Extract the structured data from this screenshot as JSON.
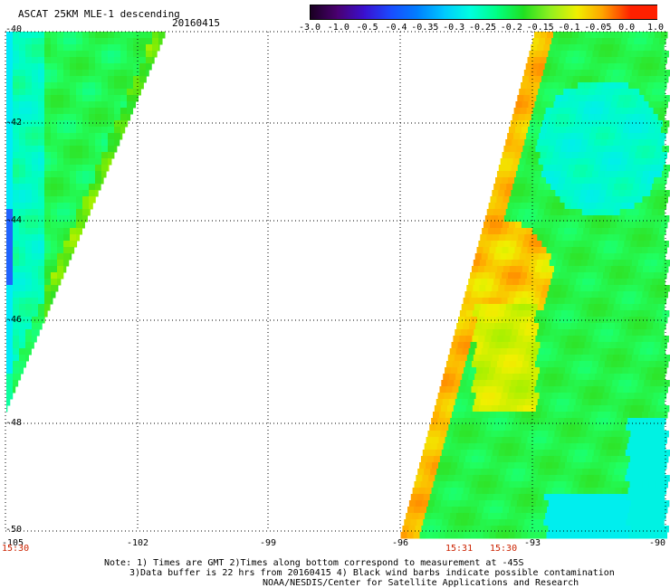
{
  "header": {
    "title": "ASCAT 25KM MLE-1 descending",
    "date": "20160415"
  },
  "colorbar": {
    "labels": [
      "-3.0",
      "-1.0",
      "-0.5",
      "-0.4",
      "-0.35",
      "-0.3",
      "-0.25",
      "-0.2",
      "-0.15",
      "-0.1",
      "-0.05",
      "0.0",
      "1.0"
    ],
    "colors": [
      "#1a0022",
      "#4a0070",
      "#3a10d0",
      "#1a4bff",
      "#0080ff",
      "#00c8ff",
      "#00ffe0",
      "#00ff80",
      "#20e020",
      "#90f020",
      "#f0f000",
      "#ffa000",
      "#ff2000"
    ]
  },
  "axes": {
    "lat_labels": [
      "-40",
      "-42",
      "-44",
      "-46",
      "-48",
      "-50"
    ],
    "lon_labels": [
      "-105",
      "-102",
      "-99",
      "-96",
      "-93",
      "-90"
    ]
  },
  "times": [
    "15:30",
    "15:31",
    "15:30"
  ],
  "notes": {
    "line1": "Note: 1) Times are GMT 2)Times along bottom correspond to measurement at -45S",
    "line2": "3)Data buffer is 22 hrs from 20160415 4) Black wind barbs indicate possible contamination",
    "line3": "NOAA/NESDIS/Center for Satellite Applications and Research"
  }
}
